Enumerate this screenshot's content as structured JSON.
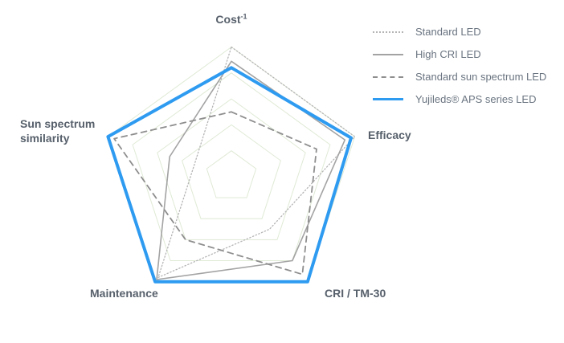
{
  "axis_labels": {
    "cost": "Cost",
    "cost_sup": "-1",
    "efficacy": "Efficacy",
    "cri": "CRI / TM-30",
    "maintenance": "Maintenance",
    "sun": "Sun spectrum similarity"
  },
  "colors": {
    "background": "#ffffff",
    "grid": "#dfead5",
    "axis_label_text": "#57606b",
    "legend_text": "#6a7480",
    "brand_blue": "#2e9bf1"
  },
  "chart_data": {
    "type": "radar",
    "title": "",
    "axes": [
      "Cost⁻¹",
      "Efficacy",
      "CRI / TM-30",
      "Maintenance",
      "Sun spectrum similarity"
    ],
    "scale_max": 100,
    "grid_rings": 5,
    "grid_color": "#dfead5",
    "legend_position": "top-right",
    "series": [
      {
        "name": "Standard LED",
        "style": "dotted",
        "color": "#b5b5b5",
        "width": 1.3,
        "values": [
          100,
          100,
          50,
          96,
          30
        ]
      },
      {
        "name": "High CRI LED",
        "style": "solid",
        "color": "#a3a3a3",
        "width": 1.6,
        "values": [
          89,
          92,
          80,
          98,
          50
        ]
      },
      {
        "name": "Standard sun spectrum LED",
        "style": "dashed",
        "color": "#8e8e8e",
        "width": 1.8,
        "values": [
          50,
          69,
          93,
          60,
          95
        ]
      },
      {
        "name": "Yujileds® APS series LED",
        "style": "solid",
        "color": "#2e9bf1",
        "width": 4,
        "values": [
          84,
          97,
          100,
          100,
          100
        ]
      }
    ]
  }
}
